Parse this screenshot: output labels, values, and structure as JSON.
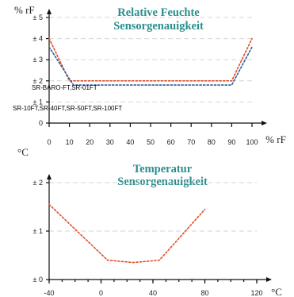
{
  "chart_data": [
    {
      "type": "line",
      "title": "Relative Feuchte",
      "subtitle": "Sensorgenauigkeit",
      "ylabel": "% rF",
      "xlabel": "% rF",
      "xlim": [
        0,
        100
      ],
      "ylim": [
        0,
        5
      ],
      "xticks": [
        "0",
        "10",
        "20",
        "30",
        "40",
        "50",
        "60",
        "70",
        "80",
        "90",
        "100"
      ],
      "yticks": [
        "0",
        "± 1",
        "± 2",
        "± 3",
        "± 4",
        "± 5"
      ],
      "grid": true,
      "series": [
        {
          "name": "SR-BARO-FT,SR-01FT",
          "color": "#e0502a",
          "dash": "dotted",
          "x": [
            0,
            10,
            90,
            100
          ],
          "y": [
            4.0,
            2.0,
            2.0,
            4.0
          ]
        },
        {
          "name": "SR-10FT,SR-40FT,SR-50FT,SR-100FT",
          "color": "#2f5f9c",
          "dash": "dotted",
          "x": [
            0,
            12,
            90,
            100
          ],
          "y": [
            3.6,
            1.8,
            1.8,
            3.6
          ]
        }
      ],
      "annotations": [
        "SR-BARO-FT,SR-01FT",
        "SR-10FT,SR-40FT,SR-50FT,SR-100FT"
      ]
    },
    {
      "type": "line",
      "title": "Temperatur",
      "subtitle": "Sensorgenauigkeit",
      "ylabel": "°C",
      "xlabel": "°C",
      "xlim": [
        -40,
        120
      ],
      "ylim": [
        0,
        2
      ],
      "xticks": [
        "-40",
        "0",
        "40",
        "80",
        "120"
      ],
      "yticks": [
        "± 0",
        "± 1",
        "± 2"
      ],
      "grid": true,
      "series": [
        {
          "name": "",
          "color": "#e0502a",
          "dash": "dotted",
          "x": [
            -40,
            5,
            25,
            45,
            80
          ],
          "y": [
            1.55,
            0.4,
            0.35,
            0.4,
            1.45
          ]
        }
      ]
    }
  ]
}
